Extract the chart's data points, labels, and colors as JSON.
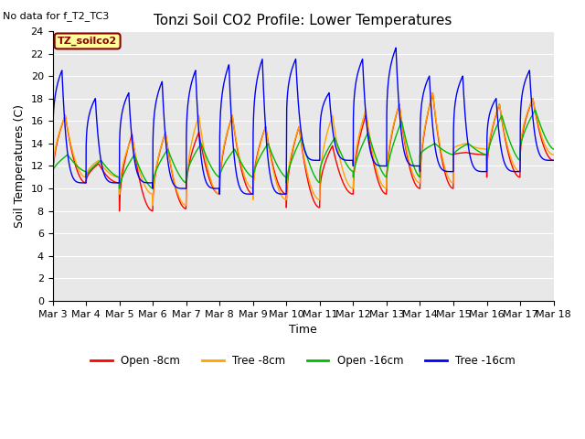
{
  "title": "Tonzi Soil CO2 Profile: Lower Temperatures",
  "no_data_text": "No data for f_T2_TC3",
  "legend_box_text": "TZ_soilco2",
  "ylabel": "Soil Temperatures (C)",
  "xlabel": "Time",
  "ylim": [
    0,
    24
  ],
  "yticks": [
    0,
    2,
    4,
    6,
    8,
    10,
    12,
    14,
    16,
    18,
    20,
    22,
    24
  ],
  "xtick_labels": [
    "Mar 3",
    "Mar 4",
    "Mar 5",
    "Mar 6",
    "Mar 7",
    "Mar 8",
    "Mar 9",
    "Mar 10",
    "Mar 11",
    "Mar 12",
    "Mar 13",
    "Mar 14",
    "Mar 15",
    "Mar 16",
    "Mar 17",
    "Mar 18"
  ],
  "series_keys": [
    "open_8cm",
    "tree_8cm",
    "open_16cm",
    "tree_16cm"
  ],
  "series_labels": [
    "Open -8cm",
    "Tree -8cm",
    "Open -16cm",
    "Tree -16cm"
  ],
  "series_colors": [
    "#ff0000",
    "#ffa500",
    "#00bb00",
    "#0000ff"
  ],
  "bg_color": "#e8e8e8",
  "fig_bg_color": "#ffffff",
  "grid_color": "#ffffff",
  "legend_box_color": "#ffff99",
  "legend_box_edge_color": "#880000",
  "legend_box_text_color": "#880000",
  "title_fontsize": 11,
  "label_fontsize": 9,
  "tick_fontsize": 8,
  "n_pts": 200,
  "n_days": 15,
  "open_8cm_peaks": [
    16.5,
    12.2,
    14.8,
    15.0,
    15.0,
    16.5,
    15.5,
    15.5,
    13.8,
    16.5,
    17.5,
    18.5,
    13.2,
    17.5,
    18.0
  ],
  "open_8cm_troughs": [
    10.5,
    10.5,
    8.0,
    8.2,
    9.5,
    9.5,
    9.5,
    8.3,
    9.5,
    9.5,
    10.0,
    10.0,
    13.0,
    11.0,
    12.5
  ],
  "tree_8cm_peaks": [
    16.5,
    12.5,
    14.5,
    15.0,
    16.5,
    16.5,
    15.5,
    15.5,
    16.5,
    17.0,
    17.5,
    18.5,
    14.0,
    17.5,
    18.0
  ],
  "tree_8cm_troughs": [
    11.0,
    11.0,
    9.5,
    8.5,
    9.5,
    10.0,
    9.0,
    9.0,
    10.0,
    10.0,
    10.5,
    10.5,
    13.5,
    11.5,
    13.0
  ],
  "open_16cm_peaks": [
    13.0,
    12.5,
    13.0,
    13.5,
    14.0,
    13.5,
    14.0,
    14.5,
    14.5,
    15.0,
    16.0,
    14.0,
    14.0,
    16.5,
    17.0
  ],
  "open_16cm_troughs": [
    11.5,
    11.0,
    10.0,
    10.5,
    11.0,
    11.0,
    11.0,
    10.5,
    11.5,
    11.0,
    11.0,
    13.0,
    13.0,
    12.5,
    13.5
  ],
  "tree_16cm_peaks": [
    20.5,
    18.0,
    18.5,
    19.5,
    20.5,
    21.0,
    21.5,
    21.5,
    18.5,
    21.5,
    22.5,
    20.0,
    20.0,
    18.0,
    20.5
  ],
  "tree_16cm_troughs": [
    10.5,
    10.5,
    10.5,
    10.0,
    10.0,
    9.5,
    9.5,
    12.5,
    12.5,
    12.0,
    12.0,
    11.5,
    11.5,
    11.5,
    12.5
  ],
  "open_8cm_peak_pos": [
    0.35,
    0.35,
    0.35,
    0.35,
    0.35,
    0.35,
    0.35,
    0.35,
    0.35,
    0.35,
    0.35,
    0.35,
    0.35,
    0.35,
    0.35
  ],
  "tree_16cm_peak_pos": [
    0.3,
    0.3,
    0.3,
    0.3,
    0.3,
    0.3,
    0.3,
    0.3,
    0.3,
    0.3,
    0.3,
    0.3,
    0.3,
    0.3,
    0.3
  ]
}
